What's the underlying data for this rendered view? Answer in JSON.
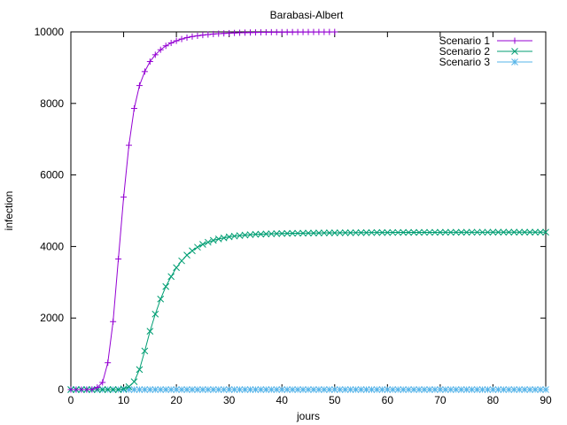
{
  "chart_data": {
    "type": "line",
    "title": "Barabasi-Albert",
    "xlabel": "jours",
    "ylabel": "infection",
    "xlim": [
      0,
      90
    ],
    "ylim": [
      0,
      10000
    ],
    "xticks": [
      0,
      10,
      20,
      30,
      40,
      50,
      60,
      70,
      80,
      90
    ],
    "yticks": [
      0,
      2000,
      4000,
      6000,
      8000,
      10000
    ],
    "grid": false,
    "legend_position": "top-right",
    "series": [
      {
        "name": "Scenario 1",
        "color": "#9400d3",
        "marker": "plus",
        "x": [
          0,
          1,
          2,
          3,
          4,
          5,
          6,
          7,
          8,
          9,
          10,
          11,
          12,
          13,
          14,
          15,
          16,
          17,
          18,
          19,
          20,
          21,
          22,
          23,
          24,
          25,
          26,
          27,
          28,
          29,
          30,
          31,
          32,
          33,
          34,
          35,
          36,
          37,
          38,
          39,
          40,
          41,
          42,
          43,
          44,
          45,
          46,
          47,
          48,
          49,
          50
        ],
        "y": [
          0,
          0,
          0,
          0,
          5,
          60,
          200,
          750,
          1900,
          3650,
          5380,
          6830,
          7860,
          8500,
          8890,
          9170,
          9360,
          9500,
          9610,
          9690,
          9750,
          9800,
          9840,
          9870,
          9890,
          9910,
          9925,
          9940,
          9950,
          9958,
          9965,
          9970,
          9975,
          9979,
          9982,
          9985,
          9987,
          9989,
          9991,
          9992,
          9993,
          9994,
          9995,
          9996,
          9996,
          9997,
          9997,
          9998,
          9998,
          9998,
          9999
        ]
      },
      {
        "name": "Scenario 2",
        "color": "#009e73",
        "marker": "cross",
        "x": [
          0,
          1,
          2,
          3,
          4,
          5,
          6,
          7,
          8,
          9,
          10,
          11,
          12,
          13,
          14,
          15,
          16,
          17,
          18,
          19,
          20,
          21,
          22,
          23,
          24,
          25,
          26,
          27,
          28,
          29,
          30,
          31,
          32,
          33,
          34,
          35,
          36,
          37,
          38,
          39,
          40,
          41,
          42,
          43,
          44,
          45,
          46,
          47,
          48,
          49,
          50,
          51,
          52,
          53,
          54,
          55,
          56,
          57,
          58,
          59,
          60,
          61,
          62,
          63,
          64,
          65,
          66,
          67,
          68,
          69,
          70,
          71,
          72,
          73,
          74,
          75,
          76,
          77,
          78,
          79,
          80,
          81,
          82,
          83,
          84,
          85,
          86,
          87,
          88,
          89,
          90
        ],
        "y": [
          0,
          0,
          0,
          0,
          0,
          0,
          0,
          0,
          0,
          0,
          20,
          80,
          220,
          560,
          1080,
          1630,
          2110,
          2530,
          2880,
          3160,
          3410,
          3600,
          3760,
          3880,
          3980,
          4060,
          4120,
          4170,
          4210,
          4240,
          4270,
          4290,
          4305,
          4320,
          4330,
          4340,
          4345,
          4350,
          4355,
          4360,
          4362,
          4365,
          4368,
          4370,
          4372,
          4375,
          4376,
          4378,
          4380,
          4381,
          4382,
          4383,
          4384,
          4385,
          4386,
          4387,
          4388,
          4389,
          4390,
          4390,
          4391,
          4392,
          4392,
          4393,
          4393,
          4394,
          4394,
          4395,
          4395,
          4395,
          4396,
          4396,
          4396,
          4397,
          4397,
          4397,
          4398,
          4398,
          4398,
          4398,
          4399,
          4399,
          4399,
          4399,
          4399,
          4400,
          4400,
          4400,
          4400,
          4400,
          4400
        ]
      },
      {
        "name": "Scenario 3",
        "color": "#56b4e9",
        "marker": "star",
        "x": [
          0,
          1,
          2,
          3,
          4,
          5,
          6,
          7,
          8,
          9,
          10,
          11,
          12,
          13,
          14,
          15,
          16,
          17,
          18,
          19,
          20,
          21,
          22,
          23,
          24,
          25,
          26,
          27,
          28,
          29,
          30,
          31,
          32,
          33,
          34,
          35,
          36,
          37,
          38,
          39,
          40,
          41,
          42,
          43,
          44,
          45,
          46,
          47,
          48,
          49,
          50,
          51,
          52,
          53,
          54,
          55,
          56,
          57,
          58,
          59,
          60,
          61,
          62,
          63,
          64,
          65,
          66,
          67,
          68,
          69,
          70,
          71,
          72,
          73,
          74,
          75,
          76,
          77,
          78,
          79,
          80,
          81,
          82,
          83,
          84,
          85,
          86,
          87,
          88,
          89,
          90
        ],
        "y": [
          0,
          0,
          0,
          0,
          0,
          0,
          0,
          0,
          0,
          0,
          0,
          0,
          0,
          0,
          0,
          0,
          0,
          0,
          0,
          0,
          0,
          0,
          0,
          0,
          0,
          0,
          0,
          0,
          0,
          0,
          0,
          0,
          0,
          0,
          0,
          0,
          0,
          0,
          0,
          0,
          0,
          0,
          0,
          0,
          0,
          0,
          0,
          0,
          0,
          0,
          0,
          0,
          0,
          0,
          0,
          0,
          0,
          0,
          0,
          0,
          0,
          0,
          0,
          0,
          0,
          0,
          0,
          0,
          0,
          0,
          0,
          0,
          0,
          0,
          0,
          0,
          0,
          0,
          0,
          0,
          0,
          0,
          0,
          0,
          0,
          0,
          0,
          0,
          0,
          0,
          0
        ]
      }
    ]
  }
}
